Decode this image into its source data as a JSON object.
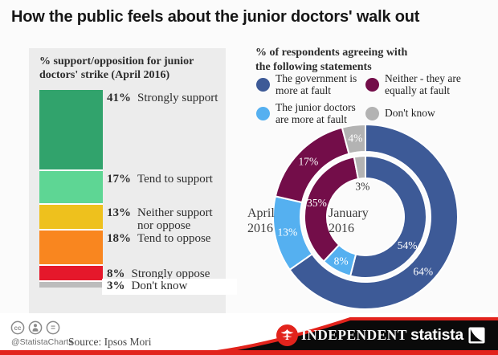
{
  "title": "How the public feels about the junior doctors' walk out",
  "chart_data": [
    {
      "type": "bar",
      "stacked": true,
      "title": "% support/opposition for junior doctors' strike (April 2016)",
      "categories": [
        "Strongly support",
        "Tend to support",
        "Neither support nor oppose",
        "Tend to oppose",
        "Strongly oppose",
        "Don't know"
      ],
      "values": [
        41,
        17,
        13,
        18,
        8,
        3
      ],
      "unit": "%",
      "colors": [
        "#31a36c",
        "#5ed694",
        "#eec11d",
        "#f9861f",
        "#e5182b",
        "#bcbcbc"
      ]
    },
    {
      "type": "pie",
      "subtype": "double-donut",
      "header_lines": [
        "% of respondents agreeing with",
        "the following statements"
      ],
      "legend": [
        {
          "label": "The government is more at fault",
          "color": "#3d5a97"
        },
        {
          "label": "The junior doctors are more at fault",
          "color": "#55b0f0"
        },
        {
          "label": "Neither - they are equally at fault",
          "color": "#730d49"
        },
        {
          "label": "Don't know",
          "color": "#b3b3b3"
        }
      ],
      "rings": [
        {
          "name": "April 2016",
          "position": "outer",
          "values": [
            64,
            13,
            17,
            4
          ]
        },
        {
          "name": "January 2016",
          "position": "inner",
          "values": [
            54,
            8,
            35,
            3
          ]
        }
      ],
      "unit": "%"
    }
  ],
  "footer": {
    "handle": "@StatistaCharts",
    "source": "Source: Ipsos Mori",
    "brands": {
      "independent": "INDEPENDENT",
      "statista": "statista"
    },
    "accent_red": "#e2231c"
  }
}
